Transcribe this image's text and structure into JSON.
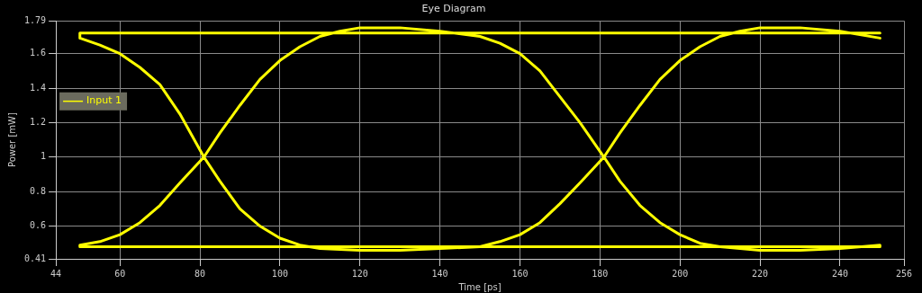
{
  "chart_data": {
    "type": "line",
    "title": "Eye Diagram",
    "xlabel": "Time [ps]",
    "ylabel": "Power [mW]",
    "xlim": [
      44,
      256
    ],
    "xticks": [
      44,
      60,
      80,
      100,
      120,
      140,
      160,
      180,
      200,
      220,
      240,
      256
    ],
    "ylim": [
      0.41,
      1.79
    ],
    "yticks": [
      0.41,
      0.6,
      0.8,
      1,
      1.2,
      1.4,
      1.6,
      1.79
    ],
    "grid": true,
    "legend": "top left",
    "marker": "none",
    "line_style": "solid",
    "series": [
      {
        "name": "Input 1",
        "color": "#ffff00",
        "x": [
          250,
          200,
          150,
          100,
          50,
          50,
          55,
          60,
          65,
          70,
          75,
          81,
          85,
          90,
          95,
          100,
          105,
          110,
          120,
          130,
          140,
          150,
          155,
          160,
          165,
          170,
          175,
          181,
          175,
          170,
          165,
          160,
          155,
          150,
          140,
          130,
          120,
          115,
          110,
          105,
          100,
          95,
          90,
          85,
          81,
          75,
          70,
          65,
          60,
          55,
          50,
          50,
          100,
          150,
          200,
          250,
          250,
          240,
          230,
          220,
          210,
          205,
          200,
          195,
          190,
          185,
          181,
          185,
          190,
          195,
          200,
          205,
          210,
          215,
          220,
          230,
          240,
          250
        ],
        "values": [
          1.72,
          1.72,
          1.72,
          1.72,
          1.72,
          1.69,
          1.65,
          1.6,
          1.52,
          1.42,
          1.25,
          1.0,
          0.86,
          0.7,
          0.6,
          0.53,
          0.49,
          0.47,
          0.46,
          0.46,
          0.47,
          0.48,
          0.51,
          0.55,
          0.62,
          0.73,
          0.85,
          1.0,
          1.2,
          1.35,
          1.5,
          1.6,
          1.66,
          1.7,
          1.73,
          1.75,
          1.75,
          1.73,
          1.7,
          1.64,
          1.56,
          1.45,
          1.3,
          1.14,
          1.0,
          0.85,
          0.72,
          0.62,
          0.55,
          0.51,
          0.49,
          0.48,
          0.48,
          0.48,
          0.48,
          0.48,
          0.49,
          0.47,
          0.46,
          0.46,
          0.48,
          0.5,
          0.55,
          0.62,
          0.72,
          0.86,
          1.0,
          1.14,
          1.3,
          1.45,
          1.56,
          1.64,
          1.7,
          1.73,
          1.75,
          1.75,
          1.73,
          1.69
        ]
      }
    ]
  }
}
